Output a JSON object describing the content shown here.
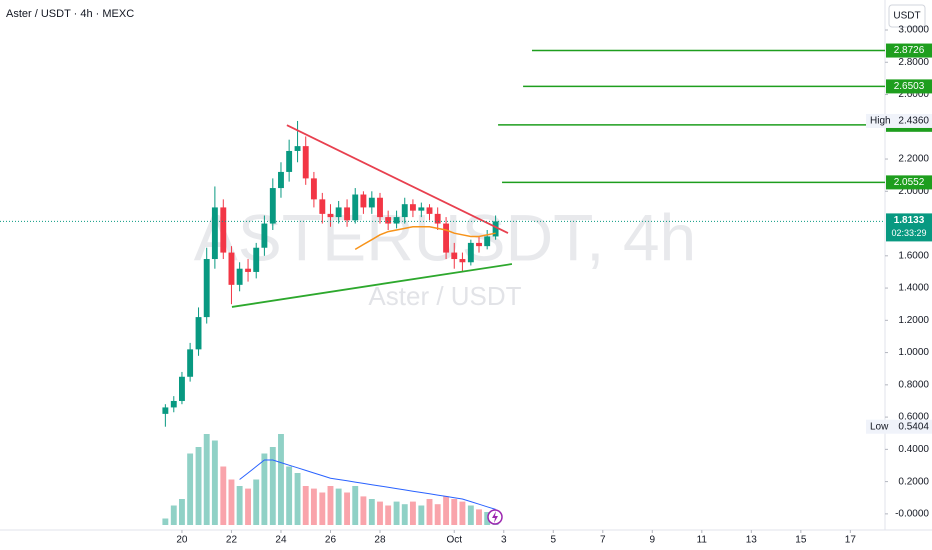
{
  "chart_data": {
    "type": "candlestick",
    "title": "Aster / USDT · 4h · MEXC",
    "currency": "USDT",
    "watermark": "ASTERUSDT, 4h",
    "watermark_sub": "Aster / USDT",
    "x": [
      19.33,
      19.67,
      20,
      20.33,
      20.67,
      21,
      21.33,
      21.67,
      22,
      22.33,
      22.67,
      23,
      23.33,
      23.67,
      24,
      24.33,
      24.67,
      25,
      25.33,
      25.67,
      26,
      26.33,
      26.67,
      27,
      27.33,
      27.67,
      28,
      28.33,
      28.67,
      29,
      29.33,
      29.67,
      30,
      30.33,
      30.67,
      31,
      31.33,
      31.67,
      32,
      32.33,
      32.67
    ],
    "open": [
      0.62,
      0.66,
      0.7,
      0.85,
      1.02,
      1.22,
      1.58,
      1.9,
      1.62,
      1.42,
      1.52,
      1.5,
      1.65,
      1.8,
      2.02,
      2.12,
      2.25,
      2.28,
      2.08,
      1.95,
      1.86,
      1.84,
      1.9,
      1.82,
      1.98,
      1.9,
      1.96,
      1.84,
      1.8,
      1.84,
      1.92,
      1.88,
      1.9,
      1.86,
      1.8,
      1.62,
      1.58,
      1.56,
      1.68,
      1.66,
      1.72
    ],
    "high": [
      0.68,
      0.73,
      0.88,
      1.06,
      1.28,
      1.65,
      2.03,
      1.95,
      1.66,
      1.56,
      1.58,
      1.68,
      1.85,
      2.08,
      2.18,
      2.32,
      2.436,
      2.34,
      2.12,
      1.99,
      1.92,
      1.94,
      1.95,
      2.02,
      2.0,
      2.0,
      1.99,
      1.88,
      1.88,
      1.96,
      1.95,
      1.93,
      1.92,
      1.9,
      1.84,
      1.68,
      1.62,
      1.7,
      1.72,
      1.76,
      1.85
    ],
    "low": [
      0.5404,
      0.63,
      0.68,
      0.82,
      0.98,
      1.18,
      1.52,
      1.58,
      1.3,
      1.38,
      1.44,
      1.46,
      1.6,
      1.76,
      1.96,
      2.06,
      2.18,
      2.04,
      1.9,
      1.8,
      1.78,
      1.8,
      1.78,
      1.8,
      1.86,
      1.86,
      1.8,
      1.76,
      1.77,
      1.8,
      1.84,
      1.84,
      1.82,
      1.76,
      1.58,
      1.52,
      1.5,
      1.54,
      1.62,
      1.64,
      1.7
    ],
    "close": [
      0.66,
      0.7,
      0.85,
      1.02,
      1.22,
      1.58,
      1.9,
      1.62,
      1.42,
      1.52,
      1.5,
      1.65,
      1.8,
      2.02,
      2.12,
      2.25,
      2.28,
      2.08,
      1.95,
      1.86,
      1.84,
      1.9,
      1.82,
      1.98,
      1.9,
      1.96,
      1.84,
      1.8,
      1.84,
      1.92,
      1.88,
      1.9,
      1.86,
      1.8,
      1.62,
      1.58,
      1.56,
      1.68,
      1.66,
      1.72,
      1.8133
    ],
    "up_color": "#089981",
    "down_color": "#f23645",
    "volume": [
      5,
      15,
      20,
      55,
      60,
      70,
      65,
      45,
      35,
      30,
      28,
      35,
      55,
      60,
      70,
      45,
      40,
      30,
      28,
      25,
      30,
      28,
      25,
      30,
      22,
      20,
      18,
      15,
      18,
      16,
      18,
      15,
      20,
      16,
      22,
      20,
      18,
      15,
      12,
      10,
      8
    ],
    "volume_lim": [
      0,
      100
    ],
    "volume_ma": [
      null,
      null,
      null,
      null,
      null,
      null,
      null,
      null,
      null,
      35,
      40,
      45,
      50,
      50,
      48,
      46,
      44,
      42,
      40,
      38,
      36,
      35,
      34,
      33,
      32,
      31,
      30,
      29,
      28,
      27,
      26,
      25,
      24,
      23,
      22,
      21,
      20,
      18,
      16,
      14,
      12
    ],
    "volume_ma_color": "#2962ff",
    "price_ma": [
      null,
      null,
      null,
      null,
      null,
      null,
      null,
      null,
      null,
      null,
      null,
      null,
      null,
      null,
      null,
      null,
      null,
      null,
      null,
      null,
      null,
      null,
      null,
      1.64,
      1.67,
      1.7,
      1.73,
      1.75,
      1.76,
      1.77,
      1.78,
      1.78,
      1.78,
      1.77,
      1.76,
      1.74,
      1.73,
      1.72,
      1.72,
      1.73,
      1.74
    ],
    "price_ma_color": "#f7931a",
    "trendlines": [
      {
        "color": "#e8404f",
        "x": [
          24.24,
          33.17
        ],
        "y": [
          2.41,
          1.741
        ]
      },
      {
        "color": "#2da82d",
        "x": [
          22.02,
          33.33
        ],
        "y": [
          1.283,
          1.549
        ]
      }
    ],
    "levels": [
      {
        "value": 2.8726,
        "x_start": 34.14
      },
      {
        "value": 2.6503,
        "x_start": 33.78
      },
      {
        "value": 2.4121,
        "x_start": 32.77
      },
      {
        "value": 2.0552,
        "x_start": 32.93
      }
    ],
    "level_color": "#1e9e1e",
    "countdown": "02:33:29",
    "high_label": "High",
    "high_value": {
      "value": 2.436,
      "label": "2.4360"
    },
    "low_label": "Low",
    "low_value": 0.5404,
    "xlim": [
      12.65,
      48.4
    ],
    "ylim": [
      -0.1,
      3.186
    ],
    "xticks": [
      20,
      22,
      24,
      26,
      28,
      {
        "value": 31,
        "label": "Oct"
      },
      {
        "value": 33,
        "label": "3"
      },
      {
        "value": 35,
        "label": "5"
      },
      {
        "value": 37,
        "label": "7"
      },
      {
        "value": 39,
        "label": "9"
      },
      {
        "value": 41,
        "label": "11"
      },
      {
        "value": 43,
        "label": "13"
      },
      {
        "value": 45,
        "label": "15"
      },
      {
        "value": 47,
        "label": "17"
      }
    ],
    "yticks": [
      {
        "value": 3,
        "label": "3.0000"
      },
      {
        "value": 2.8,
        "label": "2.8000"
      },
      {
        "value": 2.6,
        "label": "2.6000"
      },
      {
        "value": 2.2,
        "label": "2.2000"
      },
      {
        "value": 2,
        "label": "2.0000"
      },
      {
        "value": 1.6,
        "label": "1.6000"
      },
      {
        "value": 1.4,
        "label": "1.4000"
      },
      {
        "value": 1.2,
        "label": "1.2000"
      },
      {
        "value": 1,
        "label": "1.0000"
      },
      {
        "value": 0.8,
        "label": "0.8000"
      },
      {
        "value": 0.6,
        "label": "0.6000"
      },
      {
        "value": 0.4,
        "label": "0.4000"
      },
      {
        "value": 0.2,
        "label": "0.2000"
      },
      {
        "value": 0,
        "label": "-0.0000"
      }
    ],
    "grid": false
  }
}
